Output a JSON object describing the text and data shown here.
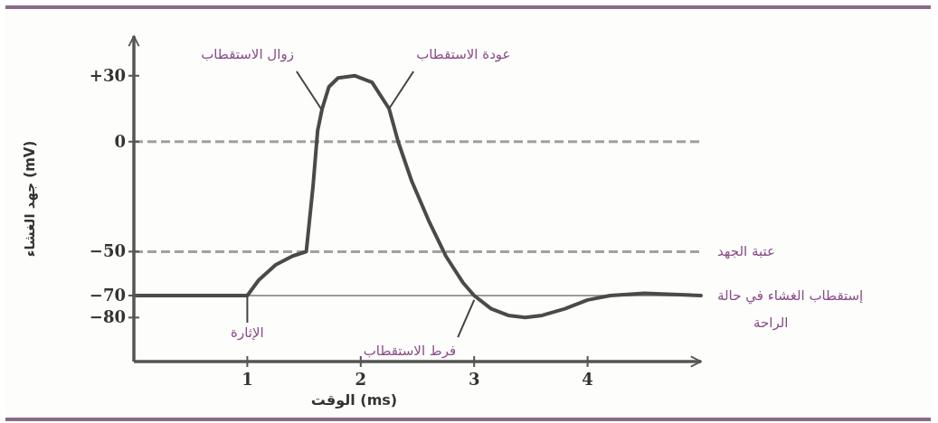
{
  "chart_data": {
    "type": "line",
    "xlabel": "الوقت (ms)",
    "ylabel": "جهد الغشاء (mV)",
    "xlim": [
      0,
      5
    ],
    "ylim": [
      -100,
      48
    ],
    "xticks": [
      1,
      2,
      3,
      4
    ],
    "yticks": [
      {
        "value": 30,
        "label": "+30"
      },
      0,
      {
        "value": -50,
        "label": "−50"
      },
      {
        "value": -70,
        "label": "−70"
      },
      {
        "value": -80,
        "label": "−80"
      }
    ],
    "marker": "none",
    "line_style": "solid",
    "series": [
      {
        "color": "#4a4a4a",
        "x": [
          0,
          1.0,
          1.1,
          1.25,
          1.4,
          1.52,
          1.58,
          1.62,
          1.66,
          1.72,
          1.8,
          1.95,
          2.1,
          2.25,
          2.33,
          2.45,
          2.6,
          2.75,
          2.9,
          3.0,
          3.15,
          3.3,
          3.45,
          3.6,
          3.8,
          4.0,
          4.2,
          4.5,
          5.0
        ],
        "values": [
          -70,
          -70,
          -63,
          -56,
          -52,
          -50,
          -20,
          5,
          15,
          25,
          29,
          30,
          27,
          15,
          0,
          -18,
          -36,
          -52,
          -64,
          -70,
          -76,
          -79,
          -80,
          -79,
          -76,
          -72,
          -70,
          -69,
          -70
        ]
      }
    ],
    "ref_lines": [
      {
        "axis": "y",
        "value": 0,
        "color": "#a0a0a0",
        "line_style": "dashed"
      },
      {
        "axis": "y",
        "value": -50,
        "label": "عتبة الجهد",
        "color": "#a0a0a0",
        "line_style": "dashed"
      },
      {
        "axis": "y",
        "value": -70,
        "label": "إستقطاب الغشاء في حالة الراحة",
        "color": "#7a7a7a",
        "line_style": "solid"
      }
    ],
    "annotations": [
      {
        "text": "زوال الاستقطاب",
        "x": 1.65,
        "y": 15
      },
      {
        "text": "عودة الاستقطاب",
        "x": 2.25,
        "y": 15
      },
      {
        "text": "الإثارة",
        "x": 1.0,
        "y": -70
      },
      {
        "text": "فرط الاستقطاب",
        "x": 3.0,
        "y": -72
      }
    ]
  }
}
